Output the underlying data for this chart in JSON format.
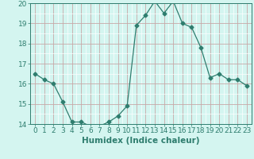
{
  "x": [
    0,
    1,
    2,
    3,
    4,
    5,
    6,
    7,
    8,
    9,
    10,
    11,
    12,
    13,
    14,
    15,
    16,
    17,
    18,
    19,
    20,
    21,
    22,
    23
  ],
  "y": [
    16.5,
    16.2,
    16.0,
    15.1,
    14.1,
    14.1,
    13.9,
    13.9,
    14.1,
    14.4,
    14.9,
    18.9,
    19.4,
    20.1,
    19.5,
    20.1,
    19.0,
    18.8,
    17.8,
    16.3,
    16.5,
    16.2,
    16.2,
    15.9
  ],
  "line_color": "#2e7d6e",
  "marker": "D",
  "marker_size": 2.5,
  "bg_color": "#d4f5f0",
  "grid_major_color": "#c8a8a8",
  "grid_minor_color": "#ffffff",
  "xlabel": "Humidex (Indice chaleur)",
  "ylim": [
    14,
    20
  ],
  "xlim": [
    -0.5,
    23.5
  ],
  "yticks": [
    14,
    15,
    16,
    17,
    18,
    19,
    20
  ],
  "xticks": [
    0,
    1,
    2,
    3,
    4,
    5,
    6,
    7,
    8,
    9,
    10,
    11,
    12,
    13,
    14,
    15,
    16,
    17,
    18,
    19,
    20,
    21,
    22,
    23
  ],
  "tick_label_size": 6.5,
  "xlabel_size": 7.5,
  "xlabel_bold": true
}
